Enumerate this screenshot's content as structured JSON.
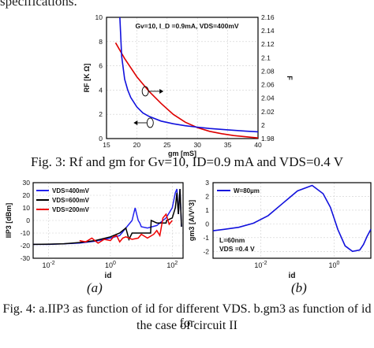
{
  "page": {
    "top_clip_text": "specifications.",
    "fig3_caption": "Fig. 3: Rf and gm for Gv=10, ID=0.9 mA and VDS=0.4 V",
    "fig4_caption_line1": "Fig. 4: a.IIP3 as function of id for different VDS. b.gm3 as function of id for",
    "fig4_caption_line2": "the case of circuit II",
    "label_a": "(a)",
    "label_b": "(b)"
  },
  "chart_data": [
    {
      "id": "fig3",
      "type": "line",
      "title": "Gv=10, I_D =0.9mA, VDS=400mV",
      "xlabel": "gm [mS]",
      "ylabel": "RF [K Ω]",
      "ylabel_right": "F",
      "xlim": [
        15,
        40
      ],
      "ylim": [
        0,
        10
      ],
      "ylim_right": [
        1.98,
        2.16
      ],
      "xticks": [
        "15",
        "20",
        "25",
        "30",
        "35",
        "40"
      ],
      "yticks": [
        "0",
        "2",
        "4",
        "6",
        "8",
        "10"
      ],
      "yticks_right": [
        "1.98",
        "2",
        "2.02",
        "2.04",
        "2.06",
        "2.08",
        "2.1",
        "2.12",
        "2.14",
        "2.16"
      ],
      "grid": true,
      "series": [
        {
          "axis": "left",
          "color": "#dd0000",
          "x": [
            16.5,
            18,
            20,
            22,
            24,
            26,
            28,
            30,
            32,
            34,
            36,
            38,
            40
          ],
          "values": [
            7.9,
            6.6,
            5.1,
            3.9,
            2.9,
            2.0,
            1.35,
            0.9,
            0.6,
            0.4,
            0.25,
            0.15,
            0.05
          ]
        },
        {
          "axis": "right",
          "color": "#1111dd",
          "x": [
            17.2,
            17.5,
            18,
            18.5,
            19,
            20,
            21,
            22,
            24,
            26,
            28,
            30,
            32,
            35,
            38,
            40
          ],
          "values": [
            2.16,
            2.102,
            2.068,
            2.052,
            2.041,
            2.027,
            2.018,
            2.013,
            2.006,
            2.002,
            1.999,
            1.997,
            1.995,
            1.993,
            1.991,
            1.99
          ]
        }
      ]
    },
    {
      "id": "fig4a",
      "type": "line",
      "xlabel": "id",
      "ylabel": "IIP3 [dBm]",
      "xscale": "log",
      "xlim": [
        -2.5,
        2.35
      ],
      "ylim": [
        -30,
        30
      ],
      "xticks": [
        "10^-2",
        "10^0",
        "10^2"
      ],
      "yticks": [
        "-30",
        "-20",
        "-10",
        "0",
        "10",
        "20",
        "30"
      ],
      "grid": true,
      "legend_position": "top-left",
      "series": [
        {
          "name": "VDS=400mV",
          "color": "#2222ee",
          "x": [
            -2.5,
            -2.0,
            -1.5,
            -1.0,
            -0.5,
            0.0,
            0.3,
            0.5,
            0.7,
            0.75,
            0.8,
            0.85,
            0.9,
            0.95,
            1.0,
            1.2,
            1.5,
            1.8,
            2.0,
            2.1,
            2.15,
            2.2,
            2.25,
            2.3
          ],
          "values": [
            -19,
            -19,
            -18.5,
            -18,
            -16.5,
            -14,
            -12,
            -6,
            0,
            5,
            10,
            5,
            0,
            -2,
            -5,
            -6,
            -4,
            2,
            10,
            22,
            25,
            5,
            25,
            -5
          ]
        },
        {
          "name": "VDS=600mV",
          "color": "#000000",
          "x": [
            -2.5,
            -2.0,
            -1.5,
            -1.0,
            -0.5,
            0.0,
            0.3,
            0.5,
            0.6,
            0.7,
            1.0,
            1.3,
            1.32,
            1.5,
            1.8,
            1.82,
            2.0,
            2.1,
            2.15,
            2.2,
            2.25,
            2.3
          ],
          "values": [
            -19,
            -18.8,
            -18.5,
            -17.5,
            -16,
            -13,
            -10,
            -6,
            -15,
            -10,
            -10,
            -10,
            0,
            -2,
            -2,
            0,
            2,
            10,
            22,
            5,
            25,
            -5
          ]
        },
        {
          "name": "VDS=200mV",
          "color": "#ee0000",
          "x": [
            -1.0,
            -0.8,
            -0.6,
            -0.4,
            -0.2,
            0.0,
            0.1,
            0.2,
            0.3,
            0.4,
            0.5,
            0.7,
            0.9,
            1.0,
            1.2,
            1.4,
            1.5,
            1.6,
            1.7,
            1.8,
            1.9,
            2.0
          ],
          "values": [
            -16,
            -17,
            -14,
            -18,
            -15,
            -16,
            -13,
            -12,
            -17,
            -14,
            -13,
            -15,
            -14,
            -11,
            -14,
            -11,
            -8,
            -12,
            2,
            5,
            -3,
            0
          ]
        }
      ]
    },
    {
      "id": "fig4b",
      "type": "line",
      "xlabel": "id",
      "ylabel": "gm3 [A/V^3]",
      "xscale": "log",
      "xlim": [
        -3.3,
        1.0
      ],
      "ylim": [
        -2.5,
        3
      ],
      "xticks": [
        "10^-2",
        "10^0"
      ],
      "yticks": [
        "-2",
        "-1",
        "0",
        "1",
        "2",
        "3"
      ],
      "grid": true,
      "legend_position": "top-left",
      "annotation_line1": "L=60nm",
      "annotation_line2": "VDS =0.4 V",
      "series": [
        {
          "name": "W=80µm",
          "color": "#1111dd",
          "x": [
            -3.3,
            -3.0,
            -2.6,
            -2.2,
            -1.8,
            -1.4,
            -1.0,
            -0.6,
            -0.3,
            -0.1,
            0.0,
            0.1,
            0.3,
            0.5,
            0.7,
            0.8,
            0.9,
            1.0
          ],
          "values": [
            -0.5,
            -0.4,
            -0.25,
            0.05,
            0.6,
            1.5,
            2.4,
            2.8,
            2.2,
            1.2,
            0.4,
            -0.4,
            -1.6,
            -2.0,
            -1.9,
            -1.5,
            -0.9,
            -0.4
          ]
        }
      ]
    }
  ]
}
